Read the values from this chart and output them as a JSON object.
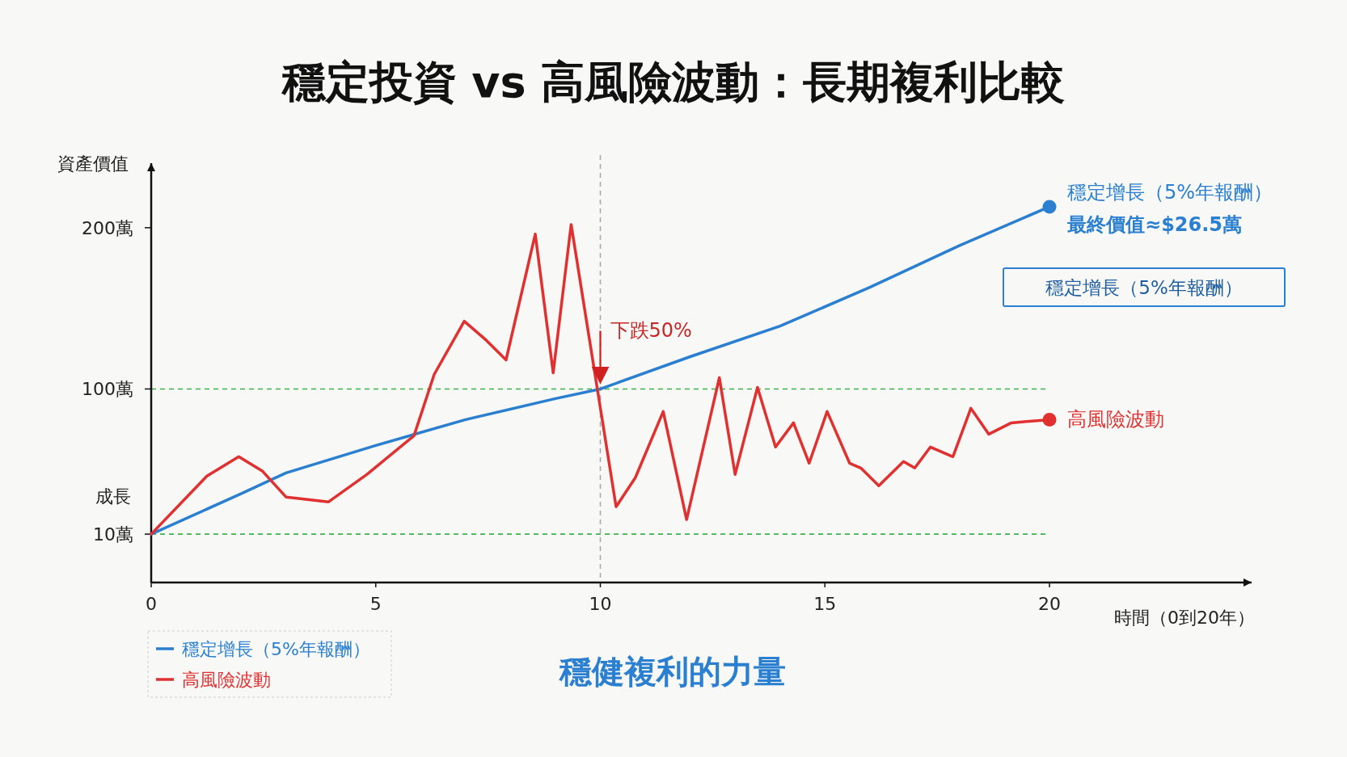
{
  "chart_data": {
    "type": "line",
    "title": "穩定投資 vs 高風險波動：長期複利比較",
    "subtitle": "穩健複利的力量",
    "xlabel": "時間（0到20年）",
    "ylabel": "資產價值",
    "xlim": [
      0,
      24.5
    ],
    "ylim": [
      -20,
      240
    ],
    "xticks": [
      0,
      5,
      10,
      15,
      20
    ],
    "yticks": [
      {
        "value": 10,
        "label": "10萬"
      },
      {
        "value": 100,
        "label": "100萬"
      },
      {
        "value": 200,
        "label": "200萬"
      }
    ],
    "legend": "bottom left",
    "marker": "none",
    "line_style": "solid",
    "ref_lines": [
      {
        "axis": "y",
        "value": 10,
        "color": "#3cb34a",
        "line_style": "dashed"
      },
      {
        "axis": "y",
        "value": 100,
        "color": "#3cb34a",
        "line_style": "dashed"
      },
      {
        "axis": "x",
        "value": 10,
        "color": "#aaaaaa",
        "line_style": "dashed"
      }
    ],
    "annotations": [
      {
        "text": "下跌50%",
        "x": 10,
        "y": 100
      },
      {
        "text": "最終價值≈$26.5萬",
        "x": 20,
        "y": 213
      },
      "穩定增長（5%年報酬）",
      "成長"
    ],
    "series": [
      {
        "name": "穩定增長（5%年報酬）",
        "color": "#2a7fd0",
        "x": [
          0,
          2,
          3,
          5,
          7,
          9,
          10,
          12,
          14,
          16,
          18,
          20
        ],
        "values": [
          10,
          35,
          48,
          65,
          81,
          94,
          100,
          120,
          139,
          163,
          189,
          213
        ]
      },
      {
        "name": "高風險波動",
        "color": "#e03030",
        "x": [
          0,
          1.24,
          1.95,
          2.48,
          3.0,
          3.95,
          4.8,
          5.85,
          6.3,
          6.97,
          7.43,
          7.9,
          8.55,
          8.95,
          9.35,
          10.35,
          10.78,
          11.4,
          11.92,
          12.65,
          13.0,
          13.5,
          13.9,
          14.3,
          14.65,
          15.05,
          15.55,
          15.8,
          16.2,
          16.75,
          17.0,
          17.35,
          17.85,
          18.25,
          18.65,
          19.15,
          19.55,
          20
        ],
        "values": [
          10,
          46,
          58,
          49,
          33,
          30,
          47,
          71,
          109,
          142,
          131,
          118,
          196,
          110,
          202,
          27,
          45,
          86,
          19,
          107,
          47,
          101,
          64,
          79,
          54,
          86,
          54,
          51,
          40,
          55,
          51,
          64,
          58,
          88,
          72,
          79,
          80,
          81
        ]
      }
    ]
  }
}
